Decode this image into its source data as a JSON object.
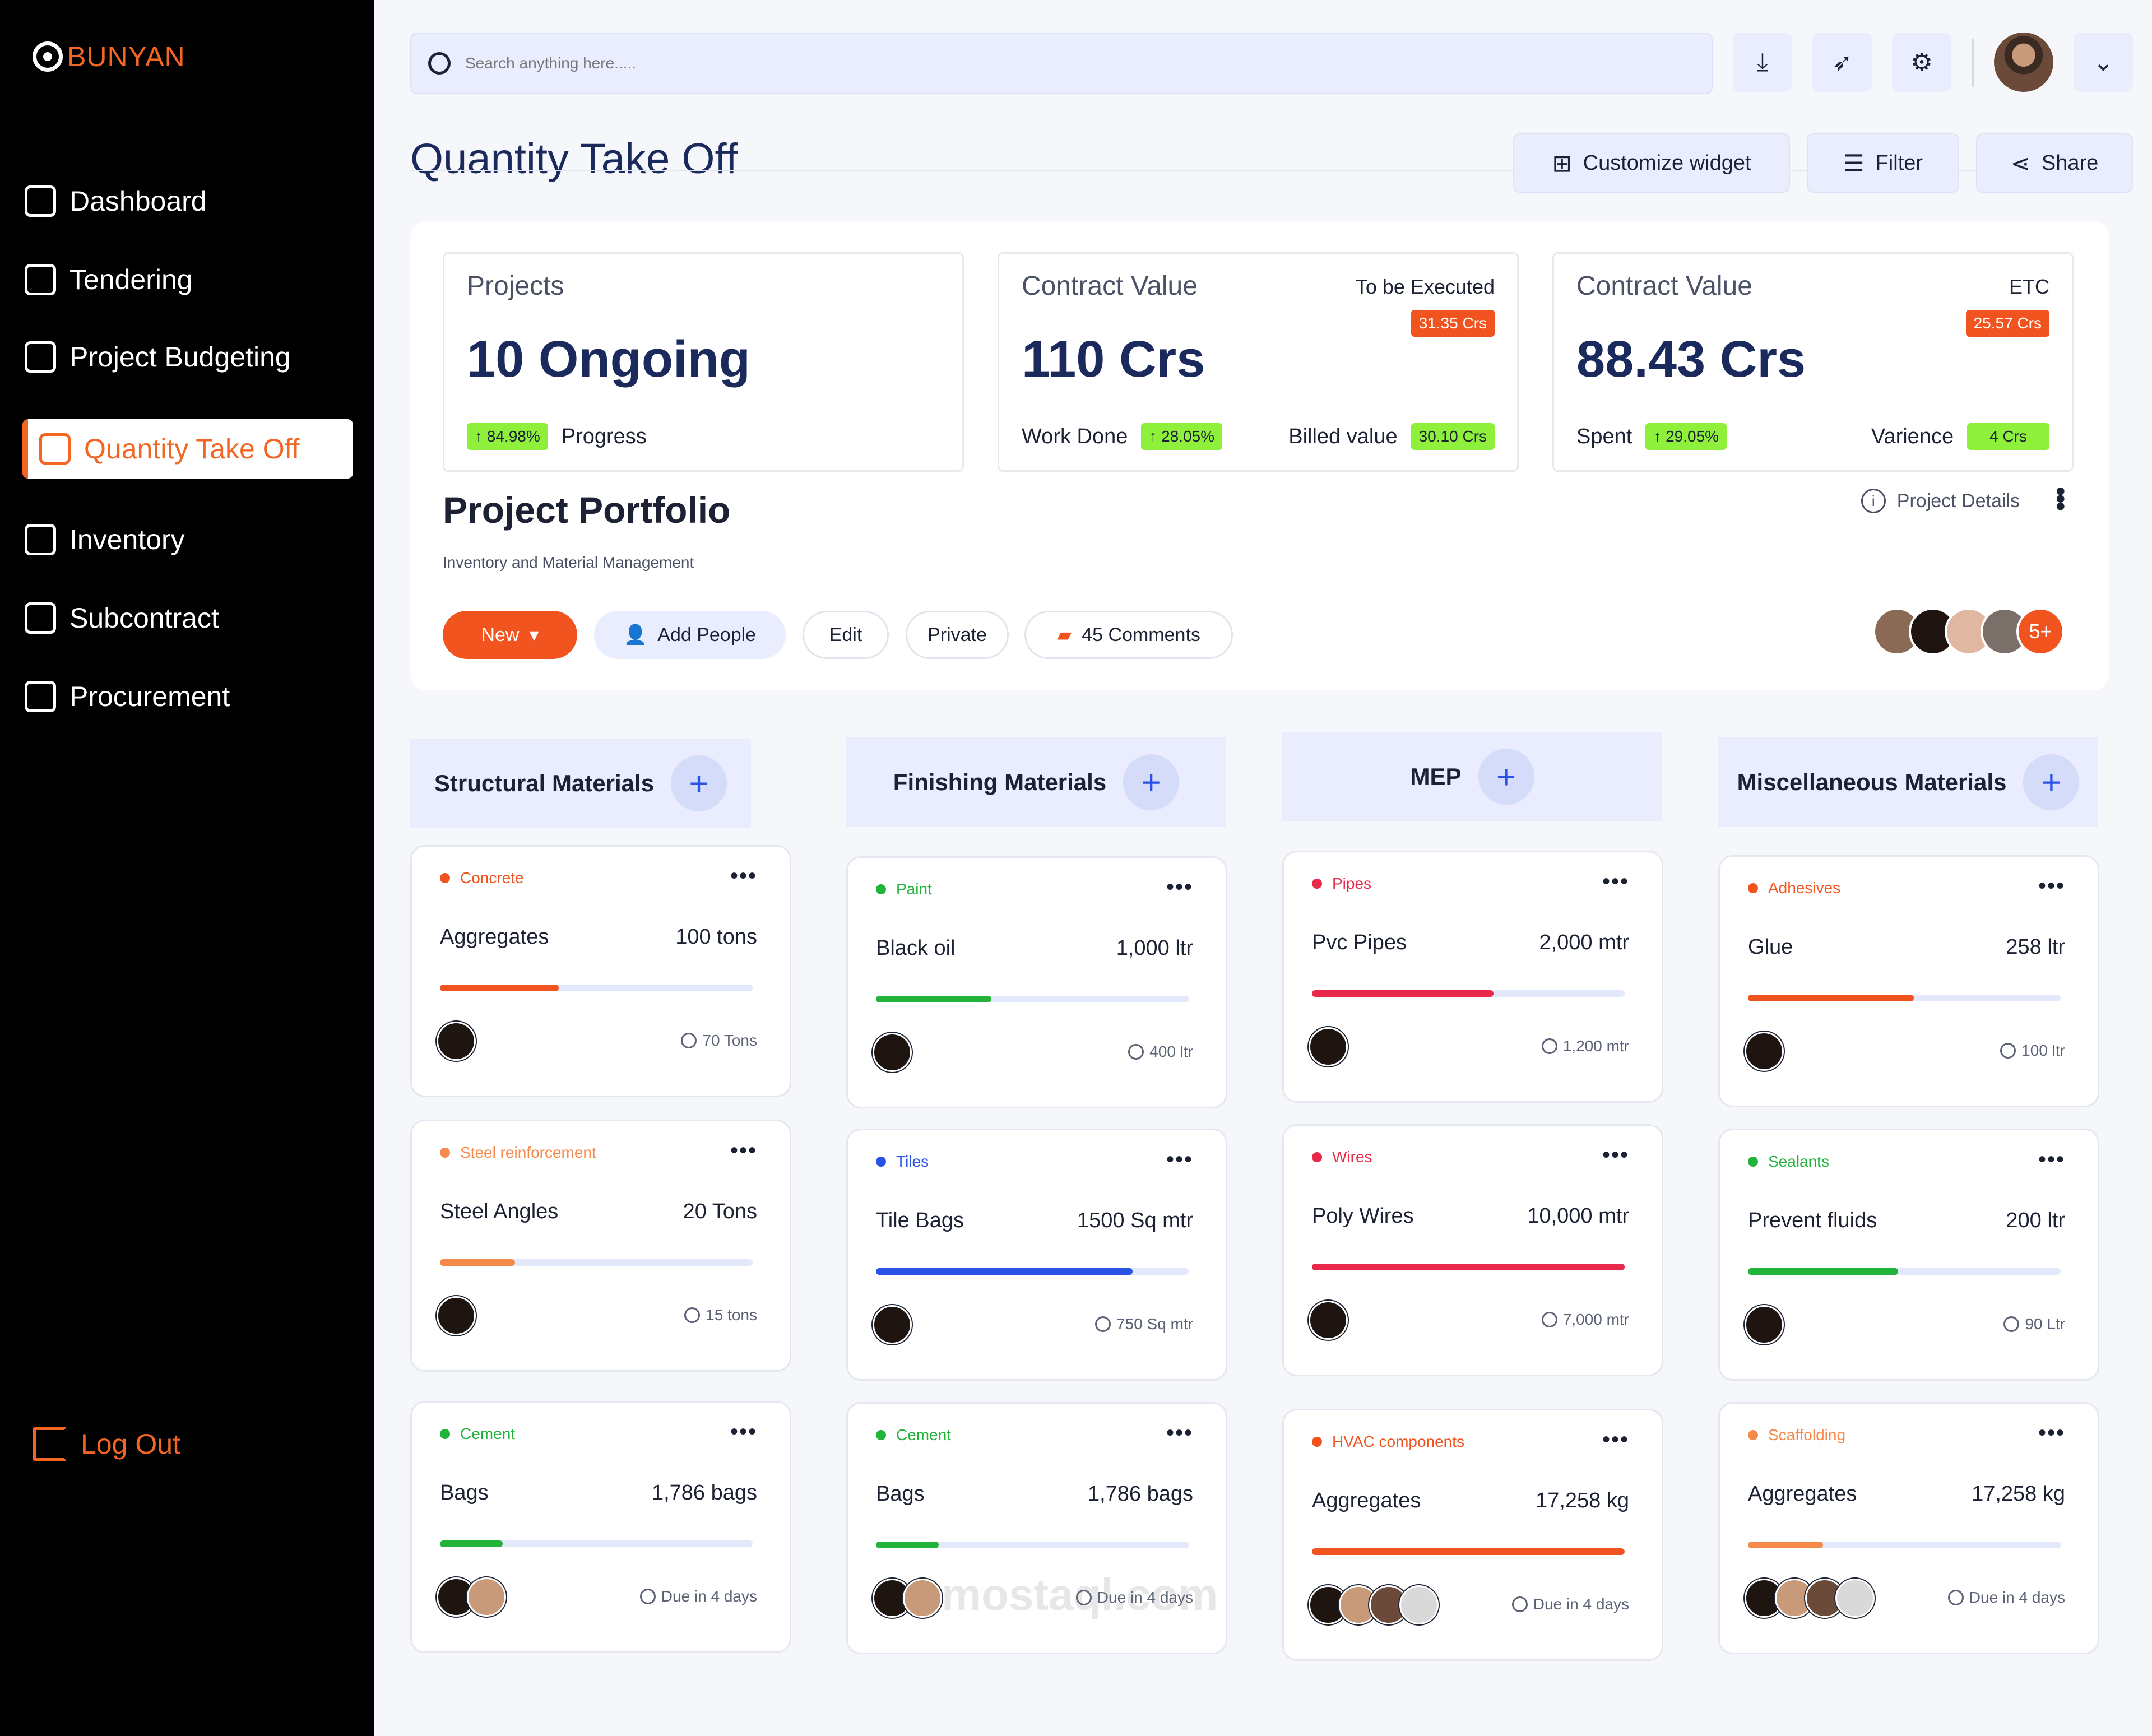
{
  "brand": {
    "name": "BUNYAN"
  },
  "sidebar": {
    "items": [
      {
        "label": "Dashboard",
        "icon": "dashboard-icon"
      },
      {
        "label": "Tendering",
        "icon": "handshake-icon"
      },
      {
        "label": "Project Budgeting",
        "icon": "budget-icon"
      },
      {
        "label": "Quantity Take Off",
        "icon": "quantity-icon",
        "active": true
      },
      {
        "label": "Inventory",
        "icon": "inventory-icon"
      },
      {
        "label": "Subcontract",
        "icon": "subcontract-icon"
      },
      {
        "label": "Procurement",
        "icon": "procurement-icon"
      }
    ],
    "logout": "Log Out"
  },
  "search": {
    "placeholder": "Search anything here....."
  },
  "page": {
    "title": "Quantity Take Off"
  },
  "actions": {
    "customize": "Customize widget",
    "filter": "Filter",
    "share": "Share"
  },
  "stats": {
    "projects": {
      "label": "Projects",
      "value": "10 Ongoing",
      "progress_chip": "↑ 84.98%",
      "progress_label": "Progress"
    },
    "contract1": {
      "label": "Contract Value",
      "right_label": "To be Executed",
      "right_chip": "31.35 Crs",
      "value": "110 Crs",
      "work_label": "Work Done",
      "work_chip": "↑ 28.05%",
      "billed_label": "Billed value",
      "billed_chip": "30.10 Crs"
    },
    "contract2": {
      "label": "Contract Value",
      "right_label": "ETC",
      "right_chip": "25.57 Crs",
      "value": "88.43 Crs",
      "spent_label": "Spent",
      "spent_chip": "↑ 29.05%",
      "var_label": "Varience",
      "var_chip": "4 Crs"
    }
  },
  "portfolio": {
    "title": "Project Portfolio",
    "subtitle": "Inventory and Material Management",
    "details": "Project Details",
    "new": "New",
    "add_people": "Add People",
    "edit": "Edit",
    "private": "Private",
    "comments": "45 Comments",
    "more_people": "5+"
  },
  "columns": [
    {
      "title": "Structural Materials",
      "cards": [
        {
          "tag": "Concrete",
          "tag_color": "#f2541f",
          "name": "Aggregates",
          "qty": "100 tons",
          "progress": 0.38,
          "bar_color": "#f2541f",
          "meta": "70 Tons",
          "people": 1
        },
        {
          "tag": "Steel reinforcement",
          "tag_color": "#f58a4b",
          "name": "Steel Angles",
          "qty": "20 Tons",
          "progress": 0.24,
          "bar_color": "#f58a4b",
          "meta": "15 tons",
          "people": 1
        },
        {
          "tag": "Cement",
          "tag_color": "#22b33a",
          "name": "Bags",
          "qty": "1,786 bags",
          "progress": 0.2,
          "bar_color": "#22b33a",
          "meta": "Due in 4 days",
          "people": 2
        }
      ]
    },
    {
      "title": "Finishing Materials",
      "cards": [
        {
          "tag": "Paint",
          "tag_color": "#22b33a",
          "name": "Black oil",
          "qty": "1,000 ltr",
          "progress": 0.37,
          "bar_color": "#22b33a",
          "meta": "400 ltr",
          "people": 1
        },
        {
          "tag": "Tiles",
          "tag_color": "#2a53e6",
          "name": "Tile Bags",
          "qty": "1500 Sq mtr",
          "progress": 0.82,
          "bar_color": "#2a53e6",
          "meta": "750 Sq mtr",
          "people": 1
        },
        {
          "tag": "Cement",
          "tag_color": "#22b33a",
          "name": "Bags",
          "qty": "1,786 bags",
          "progress": 0.2,
          "bar_color": "#22b33a",
          "meta": "Due in 4 days",
          "people": 2
        }
      ]
    },
    {
      "title": "MEP",
      "cards": [
        {
          "tag": "Pipes",
          "tag_color": "#e8294a",
          "name": "Pvc Pipes",
          "qty": "2,000 mtr",
          "progress": 0.58,
          "bar_color": "#e8294a",
          "meta": "1,200 mtr",
          "people": 1
        },
        {
          "tag": "Wires",
          "tag_color": "#e8294a",
          "name": "Poly Wires",
          "qty": "10,000 mtr",
          "progress": 1.0,
          "bar_color": "#e8294a",
          "meta": "7,000 mtr",
          "people": 1
        },
        {
          "tag": "HVAC components",
          "tag_color": "#f2541f",
          "name": "Aggregates",
          "qty": "17,258 kg",
          "progress": 1.0,
          "bar_color": "#f2541f",
          "meta": "Due in 4 days",
          "people": 4
        }
      ]
    },
    {
      "title": "Miscellaneous Materials",
      "cards": [
        {
          "tag": "Adhesives",
          "tag_color": "#f2541f",
          "name": "Glue",
          "qty": "258 ltr",
          "progress": 0.53,
          "bar_color": "#f2541f",
          "meta": "100 ltr",
          "people": 1
        },
        {
          "tag": "Sealants",
          "tag_color": "#22b33a",
          "name": "Prevent fluids",
          "qty": "200 ltr",
          "progress": 0.48,
          "bar_color": "#22b33a",
          "meta": "90 Ltr",
          "people": 1
        },
        {
          "tag": "Scaffolding",
          "tag_color": "#f58a4b",
          "name": "Aggregates",
          "qty": "17,258 kg",
          "progress": 0.24,
          "bar_color": "#f58a4b",
          "meta": "Due in 4 days",
          "people": 4
        }
      ]
    }
  ],
  "watermark": "mostaql.com"
}
